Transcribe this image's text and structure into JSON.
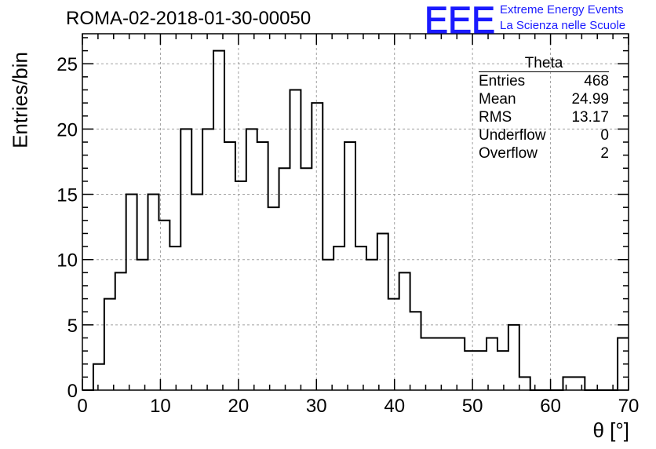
{
  "title": "ROMA-02-2018-01-30-00050",
  "logo": {
    "letters": "EEE",
    "line1": "Extreme Energy Events",
    "line2": "La Scienza nelle Scuole",
    "color": "#1a1aff"
  },
  "stats": {
    "title": "Theta",
    "rows": [
      {
        "label": "Entries",
        "value": "468"
      },
      {
        "label": "Mean",
        "value": "24.99"
      },
      {
        "label": "RMS",
        "value": "13.17"
      },
      {
        "label": "Underflow",
        "value": "0"
      },
      {
        "label": "Overflow",
        "value": "2"
      }
    ]
  },
  "chart_data": {
    "type": "bar",
    "title": "ROMA-02-2018-01-30-00050",
    "xlabel": "θ [°]",
    "ylabel": "Entries/bin",
    "xlim": [
      0,
      70
    ],
    "ylim": [
      0,
      27.3
    ],
    "bin_edges_start": 0,
    "bin_width": 1.4,
    "bin_values": [
      0,
      2,
      7,
      9,
      15,
      10,
      15,
      13,
      11,
      20,
      15,
      20,
      26,
      19,
      16,
      20,
      19,
      14,
      17,
      23,
      17,
      22,
      10,
      11,
      19,
      11,
      10,
      12,
      7,
      9,
      6,
      4,
      4,
      4,
      4,
      3,
      3,
      4,
      3,
      5,
      1,
      0,
      0,
      0,
      1,
      1,
      0,
      0,
      0,
      4
    ],
    "x_ticks": [
      "0",
      "10",
      "20",
      "30",
      "40",
      "50",
      "60",
      "70"
    ],
    "y_ticks": [
      "0",
      "5",
      "10",
      "15",
      "20",
      "25"
    ],
    "grid": true,
    "line_color": "#000000"
  }
}
